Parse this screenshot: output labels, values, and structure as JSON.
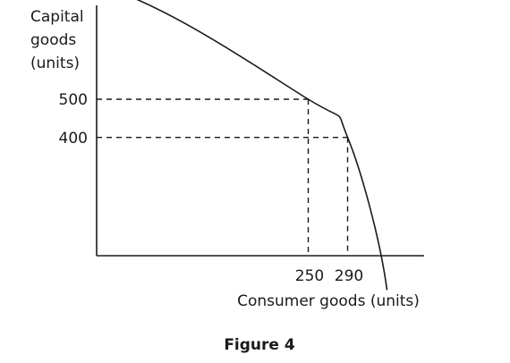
{
  "chart_data": {
    "type": "line",
    "caption": "Figure 4",
    "ylabel_lines": [
      "Capital",
      "goods",
      "(units)"
    ],
    "xlabel": "Consumer goods (units)",
    "x_ticks": [
      "250",
      "290"
    ],
    "y_ticks": [
      "500",
      "400"
    ],
    "series": [
      {
        "points": [
          {
            "x": 0,
            "y": 800
          },
          {
            "x": 250,
            "y": 500
          },
          {
            "x": 290,
            "y": 400
          },
          {
            "x": 330,
            "y": 0
          }
        ]
      }
    ],
    "highlighted_points": [
      {
        "x": 250,
        "y": 500
      },
      {
        "x": 290,
        "y": 400
      }
    ],
    "guides": "dashed",
    "grid": false
  }
}
